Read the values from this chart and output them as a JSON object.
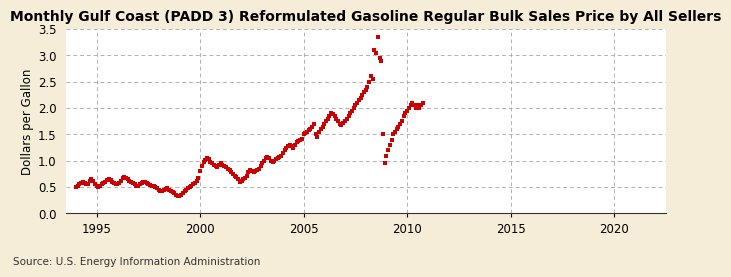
{
  "title": "Monthly Gulf Coast (PADD 3) Reformulated Gasoline Regular Bulk Sales Price by All Sellers",
  "ylabel": "Dollars per Gallon",
  "source": "Source: U.S. Energy Information Administration",
  "xlim": [
    1993.5,
    2022.5
  ],
  "ylim": [
    0.0,
    3.5
  ],
  "xticks": [
    1995,
    2000,
    2005,
    2010,
    2015,
    2020
  ],
  "yticks": [
    0.0,
    0.5,
    1.0,
    1.5,
    2.0,
    2.5,
    3.0,
    3.5
  ],
  "dot_color": "#CC0000",
  "background_color": "#F5EDD8",
  "plot_bg_color": "#FFFFFF",
  "grid_color": "#AAAAAA",
  "title_fontsize": 10,
  "label_fontsize": 8.5,
  "tick_fontsize": 8.5,
  "data": [
    [
      1994.0,
      0.5
    ],
    [
      1994.08,
      0.52
    ],
    [
      1994.17,
      0.55
    ],
    [
      1994.25,
      0.58
    ],
    [
      1994.33,
      0.6
    ],
    [
      1994.42,
      0.57
    ],
    [
      1994.5,
      0.55
    ],
    [
      1994.58,
      0.56
    ],
    [
      1994.67,
      0.62
    ],
    [
      1994.75,
      0.65
    ],
    [
      1994.83,
      0.62
    ],
    [
      1994.92,
      0.55
    ],
    [
      1995.0,
      0.52
    ],
    [
      1995.08,
      0.5
    ],
    [
      1995.17,
      0.53
    ],
    [
      1995.25,
      0.55
    ],
    [
      1995.33,
      0.58
    ],
    [
      1995.42,
      0.6
    ],
    [
      1995.5,
      0.63
    ],
    [
      1995.58,
      0.65
    ],
    [
      1995.67,
      0.63
    ],
    [
      1995.75,
      0.6
    ],
    [
      1995.83,
      0.58
    ],
    [
      1995.92,
      0.55
    ],
    [
      1996.0,
      0.56
    ],
    [
      1996.08,
      0.58
    ],
    [
      1996.17,
      0.62
    ],
    [
      1996.25,
      0.68
    ],
    [
      1996.33,
      0.7
    ],
    [
      1996.42,
      0.68
    ],
    [
      1996.5,
      0.65
    ],
    [
      1996.58,
      0.62
    ],
    [
      1996.67,
      0.6
    ],
    [
      1996.75,
      0.58
    ],
    [
      1996.83,
      0.55
    ],
    [
      1996.92,
      0.52
    ],
    [
      1997.0,
      0.52
    ],
    [
      1997.08,
      0.55
    ],
    [
      1997.17,
      0.58
    ],
    [
      1997.25,
      0.6
    ],
    [
      1997.33,
      0.6
    ],
    [
      1997.42,
      0.58
    ],
    [
      1997.5,
      0.55
    ],
    [
      1997.58,
      0.54
    ],
    [
      1997.67,
      0.53
    ],
    [
      1997.75,
      0.52
    ],
    [
      1997.83,
      0.5
    ],
    [
      1997.92,
      0.48
    ],
    [
      1998.0,
      0.45
    ],
    [
      1998.08,
      0.43
    ],
    [
      1998.17,
      0.42
    ],
    [
      1998.25,
      0.44
    ],
    [
      1998.33,
      0.46
    ],
    [
      1998.42,
      0.48
    ],
    [
      1998.5,
      0.45
    ],
    [
      1998.58,
      0.43
    ],
    [
      1998.67,
      0.4
    ],
    [
      1998.75,
      0.38
    ],
    [
      1998.83,
      0.36
    ],
    [
      1998.92,
      0.34
    ],
    [
      1999.0,
      0.33
    ],
    [
      1999.08,
      0.35
    ],
    [
      1999.17,
      0.38
    ],
    [
      1999.25,
      0.42
    ],
    [
      1999.33,
      0.45
    ],
    [
      1999.42,
      0.48
    ],
    [
      1999.5,
      0.5
    ],
    [
      1999.58,
      0.52
    ],
    [
      1999.67,
      0.55
    ],
    [
      1999.75,
      0.58
    ],
    [
      1999.83,
      0.62
    ],
    [
      1999.92,
      0.68
    ],
    [
      2000.0,
      0.8
    ],
    [
      2000.08,
      0.9
    ],
    [
      2000.17,
      0.97
    ],
    [
      2000.25,
      1.02
    ],
    [
      2000.33,
      1.05
    ],
    [
      2000.42,
      1.03
    ],
    [
      2000.5,
      0.98
    ],
    [
      2000.58,
      0.95
    ],
    [
      2000.67,
      0.92
    ],
    [
      2000.75,
      0.9
    ],
    [
      2000.83,
      0.88
    ],
    [
      2000.92,
      0.92
    ],
    [
      2001.0,
      0.95
    ],
    [
      2001.08,
      0.92
    ],
    [
      2001.17,
      0.9
    ],
    [
      2001.25,
      0.88
    ],
    [
      2001.33,
      0.85
    ],
    [
      2001.42,
      0.82
    ],
    [
      2001.5,
      0.78
    ],
    [
      2001.58,
      0.75
    ],
    [
      2001.67,
      0.72
    ],
    [
      2001.75,
      0.7
    ],
    [
      2001.83,
      0.65
    ],
    [
      2001.92,
      0.6
    ],
    [
      2002.0,
      0.62
    ],
    [
      2002.08,
      0.65
    ],
    [
      2002.17,
      0.68
    ],
    [
      2002.25,
      0.72
    ],
    [
      2002.33,
      0.78
    ],
    [
      2002.42,
      0.82
    ],
    [
      2002.5,
      0.8
    ],
    [
      2002.58,
      0.78
    ],
    [
      2002.67,
      0.8
    ],
    [
      2002.75,
      0.83
    ],
    [
      2002.83,
      0.85
    ],
    [
      2002.92,
      0.9
    ],
    [
      2003.0,
      0.95
    ],
    [
      2003.08,
      1.0
    ],
    [
      2003.17,
      1.05
    ],
    [
      2003.25,
      1.08
    ],
    [
      2003.33,
      1.05
    ],
    [
      2003.42,
      1.0
    ],
    [
      2003.5,
      0.98
    ],
    [
      2003.58,
      1.0
    ],
    [
      2003.67,
      1.03
    ],
    [
      2003.75,
      1.05
    ],
    [
      2003.83,
      1.08
    ],
    [
      2003.92,
      1.1
    ],
    [
      2004.0,
      1.15
    ],
    [
      2004.08,
      1.2
    ],
    [
      2004.17,
      1.25
    ],
    [
      2004.25,
      1.28
    ],
    [
      2004.33,
      1.3
    ],
    [
      2004.42,
      1.28
    ],
    [
      2004.5,
      1.25
    ],
    [
      2004.58,
      1.3
    ],
    [
      2004.67,
      1.35
    ],
    [
      2004.75,
      1.38
    ],
    [
      2004.83,
      1.4
    ],
    [
      2004.92,
      1.42
    ],
    [
      2005.0,
      1.5
    ],
    [
      2005.08,
      1.52
    ],
    [
      2005.17,
      1.55
    ],
    [
      2005.25,
      1.58
    ],
    [
      2005.33,
      1.6
    ],
    [
      2005.42,
      1.65
    ],
    [
      2005.5,
      1.7
    ],
    [
      2005.58,
      1.5
    ],
    [
      2005.67,
      1.45
    ],
    [
      2005.75,
      1.55
    ],
    [
      2005.83,
      1.6
    ],
    [
      2005.92,
      1.65
    ],
    [
      2006.0,
      1.7
    ],
    [
      2006.08,
      1.75
    ],
    [
      2006.17,
      1.8
    ],
    [
      2006.25,
      1.85
    ],
    [
      2006.33,
      1.9
    ],
    [
      2006.42,
      1.88
    ],
    [
      2006.5,
      1.85
    ],
    [
      2006.58,
      1.8
    ],
    [
      2006.67,
      1.75
    ],
    [
      2006.75,
      1.7
    ],
    [
      2006.83,
      1.68
    ],
    [
      2006.92,
      1.72
    ],
    [
      2007.0,
      1.75
    ],
    [
      2007.08,
      1.8
    ],
    [
      2007.17,
      1.85
    ],
    [
      2007.25,
      1.9
    ],
    [
      2007.33,
      1.95
    ],
    [
      2007.42,
      2.0
    ],
    [
      2007.5,
      2.05
    ],
    [
      2007.58,
      2.1
    ],
    [
      2007.67,
      2.15
    ],
    [
      2007.75,
      2.2
    ],
    [
      2007.83,
      2.25
    ],
    [
      2007.92,
      2.3
    ],
    [
      2008.0,
      2.35
    ],
    [
      2008.08,
      2.4
    ],
    [
      2008.17,
      2.5
    ],
    [
      2008.25,
      2.6
    ],
    [
      2008.33,
      2.56
    ],
    [
      2008.42,
      3.1
    ],
    [
      2008.5,
      3.05
    ],
    [
      2008.58,
      3.35
    ],
    [
      2008.67,
      2.95
    ],
    [
      2008.75,
      2.9
    ],
    [
      2008.83,
      1.5
    ],
    [
      2008.92,
      0.95
    ],
    [
      2009.0,
      1.1
    ],
    [
      2009.08,
      1.2
    ],
    [
      2009.17,
      1.3
    ],
    [
      2009.25,
      1.4
    ],
    [
      2009.33,
      1.5
    ],
    [
      2009.42,
      1.55
    ],
    [
      2009.5,
      1.6
    ],
    [
      2009.58,
      1.65
    ],
    [
      2009.67,
      1.7
    ],
    [
      2009.75,
      1.75
    ],
    [
      2009.83,
      1.85
    ],
    [
      2009.92,
      1.9
    ],
    [
      2010.0,
      1.95
    ],
    [
      2010.08,
      2.0
    ],
    [
      2010.17,
      2.05
    ],
    [
      2010.25,
      2.1
    ],
    [
      2010.33,
      2.05
    ],
    [
      2010.42,
      2.0
    ],
    [
      2010.5,
      2.05
    ],
    [
      2010.58,
      2.0
    ],
    [
      2010.67,
      2.05
    ],
    [
      2010.75,
      2.1
    ]
  ]
}
